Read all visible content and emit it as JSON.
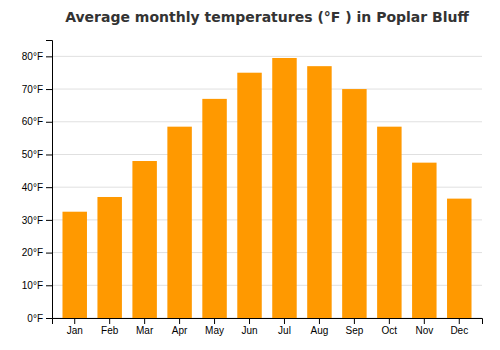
{
  "chart_data": {
    "type": "bar",
    "title": "Average monthly temperatures (°F ) in Poplar Bluff",
    "categories": [
      "Jan",
      "Feb",
      "Mar",
      "Apr",
      "May",
      "Jun",
      "Jul",
      "Aug",
      "Sep",
      "Oct",
      "Nov",
      "Dec"
    ],
    "values": [
      32.5,
      37.0,
      48.0,
      58.5,
      67.0,
      75.0,
      79.5,
      77.0,
      70.0,
      58.5,
      47.5,
      36.5
    ],
    "color": "#FF9900",
    "ylim": [
      0,
      85
    ],
    "yticks": [
      {
        "value": 0,
        "label": "0°F"
      },
      {
        "value": 10,
        "label": "10°F"
      },
      {
        "value": 20,
        "label": "20°F"
      },
      {
        "value": 30,
        "label": "30°F"
      },
      {
        "value": 40,
        "label": "40°F"
      },
      {
        "value": 50,
        "label": "50°F"
      },
      {
        "value": 60,
        "label": "60°F"
      },
      {
        "value": 70,
        "label": "70°F"
      },
      {
        "value": 80,
        "label": "80°F"
      }
    ],
    "grid": true
  }
}
